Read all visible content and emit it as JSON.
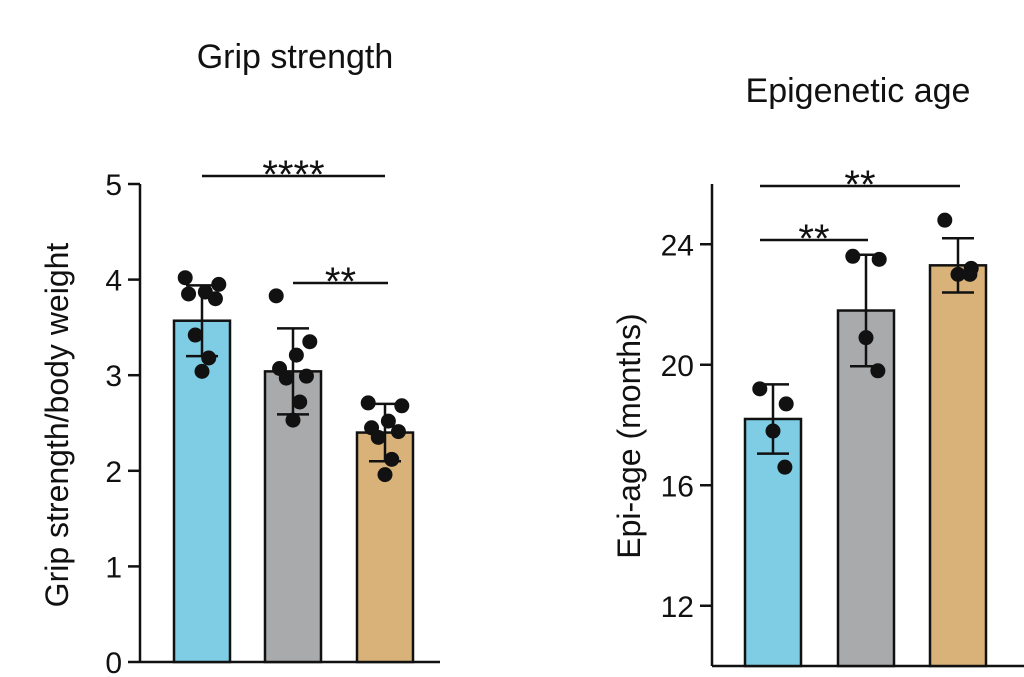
{
  "chart_data": [
    {
      "type": "bar",
      "title": "Grip strength",
      "xlabel": "",
      "ylabel": "Grip strength/body weight",
      "ylim": [
        0,
        5
      ],
      "yticks": [
        "0",
        "1",
        "2",
        "3",
        "4",
        "5"
      ],
      "categories": [
        "",
        "",
        ""
      ],
      "colors": [
        "#7ecde4",
        "#a9aaac",
        "#d9b27a"
      ],
      "values": [
        3.57,
        3.04,
        2.4
      ],
      "sd": [
        0.37,
        0.45,
        0.3
      ],
      "points": [
        [
          4.02,
          3.95,
          3.87,
          3.85,
          3.8,
          3.42,
          3.18,
          3.04
        ],
        [
          3.83,
          3.35,
          3.21,
          3.07,
          2.99,
          2.97,
          2.72,
          2.53
        ],
        [
          2.71,
          2.68,
          2.52,
          2.45,
          2.41,
          2.35,
          2.12,
          1.96
        ]
      ],
      "significance": [
        {
          "from": 0,
          "to": 2,
          "label": "****"
        },
        {
          "from": 1,
          "to": 2,
          "label": "**"
        }
      ]
    },
    {
      "type": "bar",
      "title": "Epigenetic age",
      "xlabel": "",
      "ylabel": "Epi-age (months)",
      "ylim": [
        10,
        26
      ],
      "yticks": [
        "12",
        "16",
        "20",
        "24"
      ],
      "categories": [
        "",
        "",
        ""
      ],
      "colors": [
        "#7ecde4",
        "#a9aaac",
        "#d9b27a"
      ],
      "values": [
        18.2,
        21.8,
        23.3
      ],
      "sd": [
        1.15,
        1.85,
        0.9
      ],
      "points": [
        [
          19.2,
          18.7,
          17.8,
          16.6
        ],
        [
          23.6,
          23.5,
          20.9,
          19.8
        ],
        [
          24.8,
          23.2,
          23.0,
          23.0
        ]
      ],
      "significance": [
        {
          "from": 0,
          "to": 1,
          "label": "**"
        },
        {
          "from": 0,
          "to": 2,
          "label": "**"
        }
      ]
    }
  ]
}
